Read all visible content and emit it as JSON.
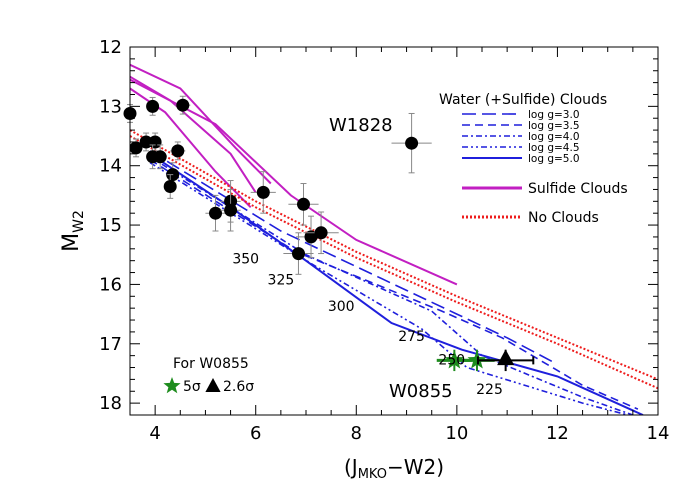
{
  "chart_data": {
    "type": "scatter",
    "xlabel_main": "(J",
    "xlabel_sub": "MKO",
    "xlabel_end": "−W2)",
    "ylabel_main": "M",
    "ylabel_sub": "W2",
    "xlim": [
      3.5,
      14
    ],
    "ylim": [
      12,
      18.2
    ],
    "y_inverted": true,
    "x_ticks": [
      4,
      6,
      8,
      10,
      12,
      14
    ],
    "y_ticks": [
      12,
      13,
      14,
      15,
      16,
      17,
      18
    ],
    "x_tick_labels": [
      "4",
      "6",
      "8",
      "10",
      "12",
      "14"
    ],
    "y_tick_labels": [
      "12",
      "13",
      "14",
      "15",
      "16",
      "17",
      "18"
    ],
    "colors": {
      "water": "#1f1fdc",
      "sulfide": "#c21fc2",
      "noclouds": "#ee1c1c",
      "w0855": "#1e8c1e",
      "points": "#000000",
      "errorbars": "#888888"
    },
    "legend": {
      "title": "Water (+Sulfide) Clouds",
      "entries": [
        "log g=3.0",
        "log g=3.5",
        "log g=4.0",
        "log g=4.5",
        "log g=5.0"
      ],
      "sulfide": "Sulfide Clouds",
      "noclouds": "No Clouds"
    },
    "annotations": {
      "w1828": "W1828",
      "w0855": "W0855",
      "for_w0855": "For W0855",
      "sigma5": "5σ",
      "sigma26": "2.6σ"
    },
    "temperature_labels": [
      {
        "text": "350",
        "x": 5.8,
        "y": 15.65
      },
      {
        "text": "325",
        "x": 6.5,
        "y": 16.0
      },
      {
        "text": "300",
        "x": 7.7,
        "y": 16.45
      },
      {
        "text": "275",
        "x": 9.1,
        "y": 16.95
      },
      {
        "text": "250",
        "x": 9.9,
        "y": 17.35
      },
      {
        "text": "225",
        "x": 10.65,
        "y": 17.85
      }
    ],
    "water_models": [
      {
        "name": "log g=3.0",
        "x": [
          3.9,
          6.5,
          9.0,
          10.0,
          11.0,
          11.9
        ],
        "y": [
          13.75,
          15.1,
          16.1,
          16.5,
          16.9,
          17.3
        ]
      },
      {
        "name": "log g=3.5",
        "x": [
          3.9,
          6.8,
          9.7,
          10.9,
          12.5,
          13.6
        ],
        "y": [
          13.9,
          15.45,
          16.45,
          16.9,
          17.7,
          18.1
        ]
      },
      {
        "name": "log g=4.0",
        "x": [
          3.9,
          7.0,
          9.5,
          10.5,
          12.5,
          13.5
        ],
        "y": [
          13.85,
          15.5,
          16.45,
          17.2,
          17.9,
          18.2
        ]
      },
      {
        "name": "log g=4.5",
        "x": [
          3.9,
          7.2,
          9.3,
          10.2,
          12.5,
          13.4
        ],
        "y": [
          13.95,
          15.7,
          16.75,
          17.4,
          18.0,
          18.2
        ]
      },
      {
        "name": "log g=5.0",
        "x": [
          3.9,
          5.5,
          7.0,
          8.7,
          10.1,
          12.0,
          13.7
        ],
        "y": [
          13.8,
          14.7,
          15.6,
          16.65,
          17.1,
          17.55,
          18.2
        ]
      }
    ],
    "sulfide_models": [
      {
        "x": [
          3.5,
          5.2,
          6.7,
          8.0,
          10.0
        ],
        "y": [
          12.55,
          13.3,
          14.5,
          15.25,
          16.0
        ]
      },
      {
        "x": [
          3.5,
          4.5,
          5.6,
          6.3
        ],
        "y": [
          12.3,
          12.7,
          13.7,
          14.3
        ]
      },
      {
        "x": [
          3.5,
          4.3,
          5.5,
          6.0
        ],
        "y": [
          12.5,
          12.9,
          13.8,
          14.45
        ]
      },
      {
        "x": [
          3.5,
          4.2,
          5.2,
          5.9
        ],
        "y": [
          12.7,
          13.1,
          14.1,
          14.7
        ]
      }
    ],
    "noclouds_models": [
      {
        "x": [
          3.5,
          6.0,
          8.0,
          10.0,
          12.0,
          14.0
        ],
        "y": [
          13.4,
          14.6,
          15.45,
          16.2,
          16.9,
          17.6
        ]
      },
      {
        "x": [
          3.5,
          6.0,
          8.0,
          10.0,
          12.0,
          14.0
        ],
        "y": [
          13.5,
          14.7,
          15.55,
          16.3,
          17.0,
          17.75
        ]
      }
    ],
    "points": [
      {
        "x": 3.5,
        "y": 13.12,
        "xerr": 0.1,
        "yerr": 0.15
      },
      {
        "x": 3.62,
        "y": 13.7,
        "xerr": 0.1,
        "yerr": 0.15
      },
      {
        "x": 3.82,
        "y": 13.6,
        "xerr": 0.1,
        "yerr": 0.15
      },
      {
        "x": 3.95,
        "y": 13.0,
        "xerr": 0.1,
        "yerr": 0.15
      },
      {
        "x": 4.0,
        "y": 13.6,
        "xerr": 0.12,
        "yerr": 0.15
      },
      {
        "x": 3.95,
        "y": 13.85,
        "xerr": 0.12,
        "yerr": 0.2
      },
      {
        "x": 4.1,
        "y": 13.85,
        "xerr": 0.12,
        "yerr": 0.2
      },
      {
        "x": 4.45,
        "y": 13.75,
        "xerr": 0.15,
        "yerr": 0.15
      },
      {
        "x": 4.55,
        "y": 12.98,
        "xerr": 0.15,
        "yerr": 0.15
      },
      {
        "x": 4.35,
        "y": 14.15,
        "xerr": 0.12,
        "yerr": 0.2
      },
      {
        "x": 4.3,
        "y": 14.35,
        "xerr": 0.12,
        "yerr": 0.2
      },
      {
        "x": 5.2,
        "y": 14.8,
        "xerr": 0.2,
        "yerr": 0.3
      },
      {
        "x": 5.5,
        "y": 14.6,
        "xerr": 0.2,
        "yerr": 0.35
      },
      {
        "x": 5.5,
        "y": 14.75,
        "xerr": 0.2,
        "yerr": 0.35
      },
      {
        "x": 6.15,
        "y": 14.45,
        "xerr": 0.25,
        "yerr": 0.35
      },
      {
        "x": 6.85,
        "y": 15.48,
        "xerr": 0.3,
        "yerr": 0.35
      },
      {
        "x": 6.95,
        "y": 14.65,
        "xerr": 0.3,
        "yerr": 0.35
      },
      {
        "x": 7.1,
        "y": 15.2,
        "xerr": 0.3,
        "yerr": 0.35
      },
      {
        "x": 7.3,
        "y": 15.13,
        "xerr": 0.35,
        "yerr": 0.35
      },
      {
        "x": 9.1,
        "y": 13.62,
        "xerr": 0.4,
        "yerr": 0.5
      }
    ],
    "w0855_5sigma": {
      "x": [
        9.95,
        10.4
      ],
      "y": 17.28,
      "xerr": 0.35,
      "yerr": 0.18
    },
    "w0855_26sigma": {
      "x": 10.97,
      "y": 17.28,
      "xerr": 0.55,
      "yerr": 0.18
    }
  }
}
